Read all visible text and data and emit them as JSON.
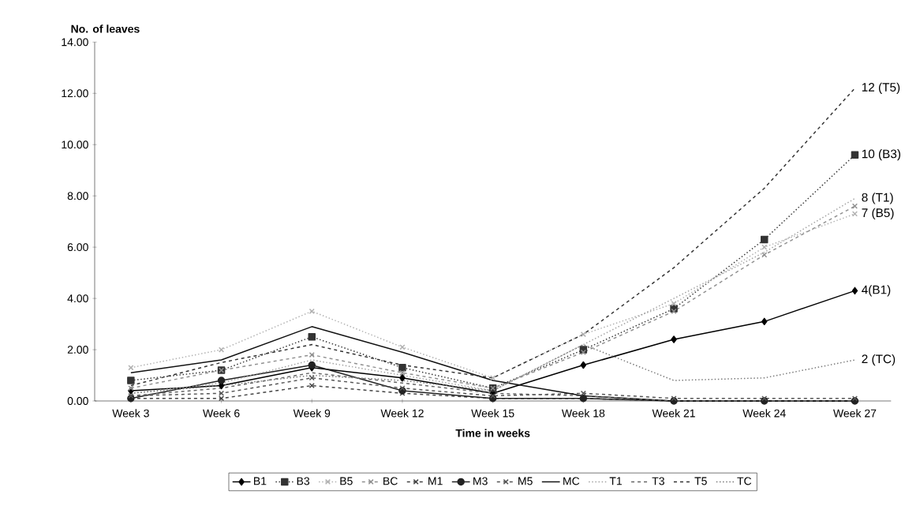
{
  "chart_data": {
    "type": "line",
    "xlabel": "Time in weeks",
    "ylabel": "No. of leaves",
    "categories": [
      "Week 3",
      "Week 6",
      "Week 9",
      "Week 12",
      "Week 15",
      "Week 18",
      "Week 21",
      "Week 24",
      "Week 27"
    ],
    "ylim": [
      0,
      14
    ],
    "yticks": [
      {
        "value": 0,
        "label": "0.00"
      },
      {
        "value": 2,
        "label": "2.00"
      },
      {
        "value": 4,
        "label": "4.00"
      },
      {
        "value": 6,
        "label": "6.00"
      },
      {
        "value": 8,
        "label": "8.00"
      },
      {
        "value": 10,
        "label": "10.00"
      },
      {
        "value": 12,
        "label": "12.00"
      },
      {
        "value": 14,
        "label": "14.00"
      }
    ],
    "grid": false,
    "legend": "bottom",
    "series": [
      {
        "name": "B1",
        "color": "#000000",
        "marker": "diamond",
        "line_style": "solid",
        "values": [
          0.4,
          0.6,
          1.3,
          0.9,
          0.3,
          1.4,
          2.4,
          3.1,
          4.3
        ]
      },
      {
        "name": "B3",
        "color": "#333333",
        "marker": "square",
        "line_style": "dotted",
        "values": [
          0.8,
          1.2,
          2.5,
          1.3,
          0.5,
          2.0,
          3.6,
          6.3,
          9.6
        ]
      },
      {
        "name": "B5",
        "color": "#b0b0b0",
        "marker": "cross",
        "line_style": "dotted",
        "values": [
          1.3,
          2.0,
          3.5,
          2.1,
          0.9,
          2.6,
          3.8,
          6.0,
          7.3
        ]
      },
      {
        "name": "BC",
        "color": "#909090",
        "marker": "cross",
        "line_style": "dashed",
        "values": [
          0.5,
          1.2,
          1.8,
          1.1,
          0.5,
          1.9,
          3.5,
          5.7,
          7.6
        ]
      },
      {
        "name": "M1",
        "color": "#444444",
        "marker": "cross",
        "line_style": "dashed",
        "values": [
          0.1,
          0.1,
          0.6,
          0.3,
          0.1,
          0.1,
          0.0,
          0.0,
          0.0
        ]
      },
      {
        "name": "M3",
        "color": "#222222",
        "marker": "circle",
        "line_style": "solid",
        "values": [
          0.1,
          0.8,
          1.4,
          0.4,
          0.1,
          0.1,
          0.0,
          0.0,
          0.0
        ]
      },
      {
        "name": "M5",
        "color": "#555555",
        "marker": "cross",
        "line_style": "dashed",
        "values": [
          0.2,
          0.3,
          0.9,
          0.5,
          0.2,
          0.3,
          0.1,
          0.1,
          0.1
        ]
      },
      {
        "name": "MC",
        "color": "#111111",
        "marker": "none",
        "line_style": "solid",
        "values": [
          1.1,
          1.6,
          2.9,
          1.9,
          0.8,
          0.2,
          0.0,
          0.0,
          0.0
        ]
      },
      {
        "name": "T1",
        "color": "#a0a0a0",
        "marker": "none",
        "line_style": "dotted",
        "values": [
          0.3,
          0.7,
          1.6,
          1.0,
          0.4,
          2.2,
          4.0,
          5.8,
          7.9
        ]
      },
      {
        "name": "T3",
        "color": "#666666",
        "marker": "none",
        "line_style": "dashed",
        "values": [
          0.2,
          0.5,
          1.1,
          0.7,
          0.3,
          0.2,
          0.0,
          0.0,
          0.0
        ]
      },
      {
        "name": "T5",
        "color": "#333333",
        "marker": "none",
        "line_style": "dashed",
        "values": [
          0.6,
          1.5,
          2.2,
          1.4,
          0.9,
          2.6,
          5.2,
          8.3,
          12.2
        ]
      },
      {
        "name": "TC",
        "color": "#777777",
        "marker": "none",
        "line_style": "dotted",
        "values": [
          0.3,
          0.6,
          1.0,
          0.8,
          0.4,
          2.2,
          0.8,
          0.9,
          1.6
        ]
      }
    ],
    "annotations": [
      {
        "text": "12 (T5)",
        "x": "Week 27",
        "y": 12.2
      },
      {
        "text": "10 (B3)",
        "x": "Week 27",
        "y": 9.6
      },
      {
        "text": "8 (T1)",
        "x": "Week 27",
        "y": 7.9
      },
      {
        "text": "7 (B5)",
        "x": "Week 27",
        "y": 7.3
      },
      {
        "text": "4(B1)",
        "x": "Week 27",
        "y": 4.3
      },
      {
        "text": "2 (TC)",
        "x": "Week 27",
        "y": 1.6
      }
    ]
  }
}
